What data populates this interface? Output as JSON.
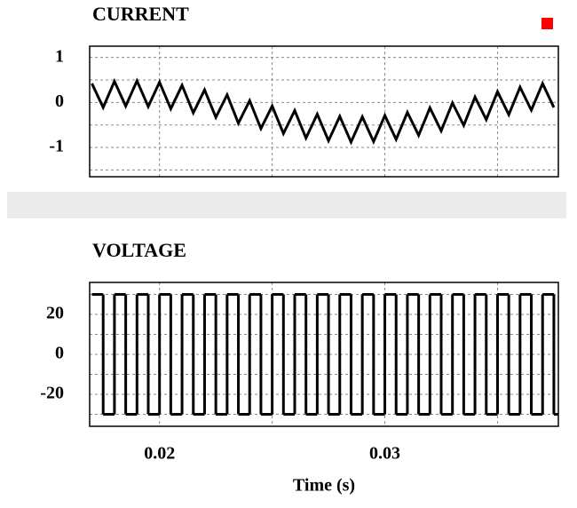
{
  "chart_data": [
    {
      "type": "line",
      "title": "CURRENT",
      "color": "#000000",
      "x": [
        0.017,
        0.0175,
        0.018,
        0.0185,
        0.019,
        0.0195,
        0.02,
        0.0205,
        0.021,
        0.0215,
        0.022,
        0.0225,
        0.023,
        0.0235,
        0.024,
        0.0245,
        0.025,
        0.0255,
        0.026,
        0.0265,
        0.027,
        0.0275,
        0.028,
        0.0285,
        0.029,
        0.0295,
        0.03,
        0.0305,
        0.031,
        0.0315,
        0.032,
        0.0325,
        0.033,
        0.0335,
        0.034,
        0.0345,
        0.035,
        0.0355,
        0.036,
        0.0365,
        0.037,
        0.0375
      ],
      "values": [
        0.42,
        -0.11,
        0.47,
        -0.08,
        0.48,
        -0.09,
        0.45,
        -0.14,
        0.38,
        -0.23,
        0.28,
        -0.33,
        0.17,
        -0.46,
        0.04,
        -0.58,
        -0.08,
        -0.69,
        -0.18,
        -0.79,
        -0.26,
        -0.85,
        -0.31,
        -0.88,
        -0.32,
        -0.87,
        -0.29,
        -0.82,
        -0.22,
        -0.73,
        -0.12,
        -0.63,
        -0.01,
        -0.51,
        0.12,
        -0.38,
        0.24,
        -0.27,
        0.34,
        -0.17,
        0.42,
        -0.11
      ],
      "xlim": [
        0.0169,
        0.0377
      ],
      "ylim": [
        -1.65,
        1.25
      ],
      "yticks": [
        -1,
        0,
        1
      ],
      "xgrid": [
        0.02,
        0.025,
        0.03,
        0.035
      ],
      "ygrid": [
        -1.5,
        -1,
        -0.5,
        0,
        0.5,
        1
      ]
    },
    {
      "type": "step",
      "title": "VOLTAGE",
      "xlabel": "Time (s)",
      "color": "#000000",
      "x": [
        0.017,
        0.0175,
        0.018,
        0.0185,
        0.019,
        0.0195,
        0.02,
        0.0205,
        0.021,
        0.0215,
        0.022,
        0.0225,
        0.023,
        0.0235,
        0.024,
        0.0245,
        0.025,
        0.0255,
        0.026,
        0.0265,
        0.027,
        0.0275,
        0.028,
        0.0285,
        0.029,
        0.0295,
        0.03,
        0.0305,
        0.031,
        0.0315,
        0.032,
        0.0325,
        0.033,
        0.0335,
        0.034,
        0.0345,
        0.035,
        0.0355,
        0.036,
        0.0365,
        0.037,
        0.0375
      ],
      "values": [
        30,
        -30,
        30,
        -30,
        30,
        -30,
        30,
        -30,
        30,
        -30,
        30,
        -30,
        30,
        -30,
        30,
        -30,
        30,
        -30,
        30,
        -30,
        30,
        -30,
        30,
        -30,
        30,
        -30,
        30,
        -30,
        30,
        -30,
        30,
        -30,
        30,
        -30,
        30,
        -30,
        30,
        -30,
        30,
        -30,
        30,
        -30
      ],
      "xlim": [
        0.0169,
        0.0377
      ],
      "ylim": [
        -36,
        36
      ],
      "yticks": [
        -20,
        0,
        20
      ],
      "xticks": [
        0.02,
        0.03
      ],
      "xgrid": [
        0.02,
        0.025,
        0.03,
        0.035
      ],
      "ygrid": [
        -30,
        -20,
        -10,
        0,
        10,
        20,
        30
      ]
    }
  ]
}
